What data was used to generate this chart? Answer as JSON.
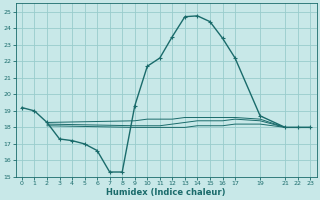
{
  "xlabel": "Humidex (Indice chaleur)",
  "ylabel": "",
  "xlim": [
    -0.5,
    23.5
  ],
  "ylim": [
    15,
    25.5
  ],
  "yticks": [
    15,
    16,
    17,
    18,
    19,
    20,
    21,
    22,
    23,
    24,
    25
  ],
  "xticks": [
    0,
    1,
    2,
    3,
    4,
    5,
    6,
    7,
    8,
    9,
    10,
    11,
    12,
    13,
    14,
    15,
    16,
    17,
    19,
    21,
    22,
    23
  ],
  "bg_color": "#c8e8e8",
  "grid_color": "#99cccc",
  "line_color": "#1a6b6b",
  "line1_x": [
    0,
    1,
    2,
    3,
    4,
    5,
    6,
    7,
    8,
    9,
    10,
    11,
    12,
    13,
    14,
    15,
    16,
    17,
    19,
    21,
    22,
    23
  ],
  "line1_y": [
    19.2,
    19.0,
    18.3,
    17.3,
    17.2,
    17.0,
    16.6,
    15.3,
    15.3,
    19.3,
    21.7,
    22.2,
    23.5,
    24.7,
    24.75,
    24.4,
    23.4,
    22.2,
    18.7,
    18.0,
    18.0,
    18.0
  ],
  "line1_markers_x": [
    0,
    1,
    2,
    3,
    4,
    5,
    6,
    7,
    8,
    9,
    10,
    11,
    12,
    13,
    14,
    15,
    16,
    17,
    19,
    21,
    22,
    23
  ],
  "line2_x": [
    2,
    9,
    10,
    11,
    12,
    13,
    14,
    15,
    16,
    17,
    19,
    21,
    22,
    23
  ],
  "line2_y": [
    18.3,
    18.4,
    18.5,
    18.5,
    18.5,
    18.6,
    18.6,
    18.6,
    18.6,
    18.6,
    18.5,
    18.0,
    18.0,
    18.0
  ],
  "line3_x": [
    2,
    9,
    10,
    11,
    12,
    13,
    14,
    15,
    16,
    17,
    19,
    21,
    22,
    23
  ],
  "line3_y": [
    18.2,
    18.1,
    18.1,
    18.1,
    18.2,
    18.3,
    18.4,
    18.4,
    18.4,
    18.5,
    18.4,
    18.0,
    18.0,
    18.0
  ],
  "line4_x": [
    2,
    9,
    10,
    11,
    12,
    13,
    14,
    15,
    16,
    17,
    19,
    21,
    22,
    23
  ],
  "line4_y": [
    18.1,
    18.0,
    18.0,
    18.0,
    18.0,
    18.0,
    18.1,
    18.1,
    18.1,
    18.2,
    18.2,
    18.0,
    18.0,
    18.0
  ],
  "line_width": 1.0,
  "marker_size": 3
}
